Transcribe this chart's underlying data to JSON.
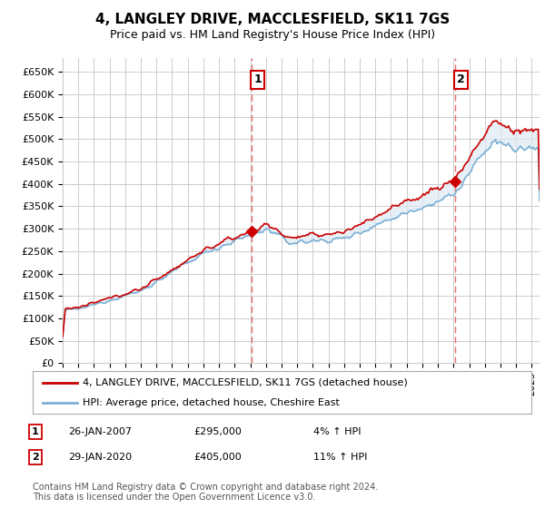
{
  "title": "4, LANGLEY DRIVE, MACCLESFIELD, SK11 7GS",
  "subtitle": "Price paid vs. HM Land Registry's House Price Index (HPI)",
  "legend_line1": "4, LANGLEY DRIVE, MACCLESFIELD, SK11 7GS (detached house)",
  "legend_line2": "HPI: Average price, detached house, Cheshire East",
  "annotation1_label": "1",
  "annotation1_date": "26-JAN-2007",
  "annotation1_value": "£295,000",
  "annotation1_hpi": "4% ↑ HPI",
  "annotation2_label": "2",
  "annotation2_date": "29-JAN-2020",
  "annotation2_value": "£405,000",
  "annotation2_hpi": "11% ↑ HPI",
  "footer": "Contains HM Land Registry data © Crown copyright and database right 2024.\nThis data is licensed under the Open Government Licence v3.0.",
  "xmin": 1995.0,
  "xmax": 2025.5,
  "ymin": 0,
  "ymax": 680000,
  "yticks": [
    0,
    50000,
    100000,
    150000,
    200000,
    250000,
    300000,
    350000,
    400000,
    450000,
    500000,
    550000,
    600000,
    650000
  ],
  "ytick_labels": [
    "£0",
    "£50K",
    "£100K",
    "£150K",
    "£200K",
    "£250K",
    "£300K",
    "£350K",
    "£400K",
    "£450K",
    "£500K",
    "£550K",
    "£600K",
    "£650K"
  ],
  "grid_color": "#cccccc",
  "hpi_color": "#7bafd4",
  "price_color": "#cc0000",
  "vline_color": "#e87070",
  "fill_color": "#deeaf4",
  "marker1_x": 2007.08,
  "marker1_y": 295000,
  "marker2_x": 2020.08,
  "marker2_y": 405000,
  "background_color": "#ffffff"
}
